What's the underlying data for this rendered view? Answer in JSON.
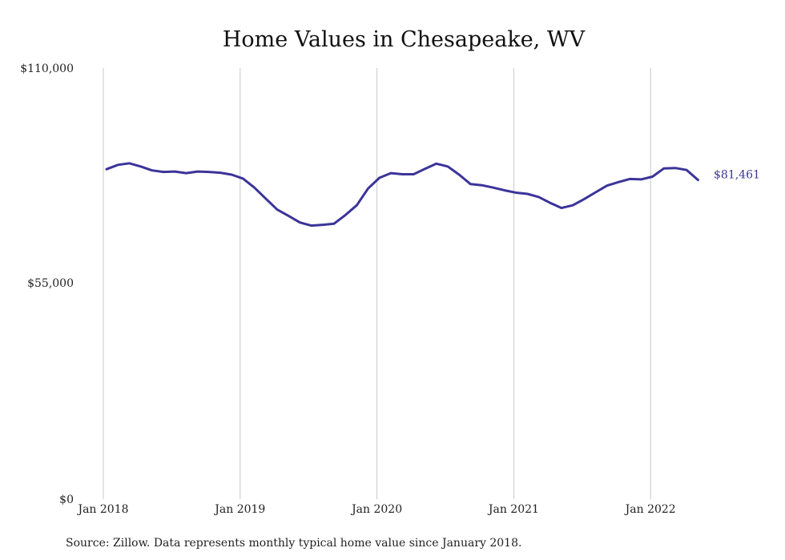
{
  "chart_data": {
    "type": "line",
    "title": "Home Values in Chesapeake, WV",
    "xlabel": "",
    "ylabel": "",
    "x_ticks": [
      "Jan 2018",
      "Jan 2019",
      "Jan 2020",
      "Jan 2021",
      "Jan 2022"
    ],
    "y_ticks": [
      "$110,000",
      "$55,000",
      "$0"
    ],
    "ylim": [
      0,
      110000
    ],
    "grid": "vertical at January ticks",
    "line_color": "#3b3499",
    "end_label": "$81,461",
    "series": [
      {
        "values": [
          84200,
          85300,
          85700,
          84900,
          83900,
          83500,
          83600,
          83200,
          83600,
          83500,
          83300,
          82800,
          81800,
          79500,
          76700,
          73900,
          72300,
          70600,
          69800,
          70000,
          70300,
          72500,
          75000,
          79300,
          82000,
          83200,
          82900,
          82900,
          84300,
          85600,
          84900,
          82800,
          80400,
          80100,
          79500,
          78800,
          78200,
          77900,
          77100,
          75600,
          74300,
          75000,
          76600,
          78300,
          80000,
          80900,
          81700,
          81600,
          82300,
          84400,
          84500,
          84000,
          81461
        ]
      }
    ],
    "source": "Source: Zillow. Data represents monthly typical home value since January 2018."
  }
}
